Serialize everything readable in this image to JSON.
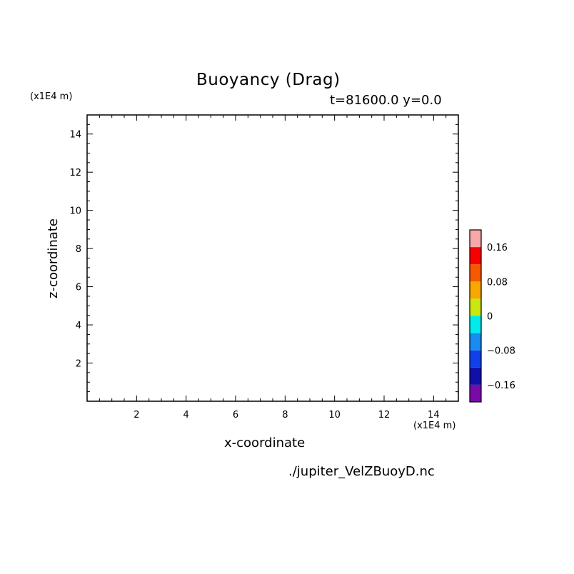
{
  "chart_data": {
    "type": "heatmap",
    "title": "Buoyancy (Drag)",
    "subtitle": "t=81600.0 y=0.0",
    "xlabel": "x-coordinate",
    "ylabel": "z-coordinate",
    "x_unit": "(x1E4 m)",
    "y_unit": "(x1E4 m)",
    "xlim": [
      0,
      15
    ],
    "ylim": [
      0,
      15
    ],
    "x_ticks": [
      2,
      4,
      6,
      8,
      10,
      12,
      14
    ],
    "y_ticks": [
      2,
      4,
      6,
      8,
      10,
      12,
      14
    ],
    "grid": false,
    "values": [],
    "colorbar": {
      "placement": "right",
      "levels": [
        "#7a0aa8",
        "#1010a8",
        "#1040e8",
        "#1a8cf0",
        "#00ecec",
        "#c8e810",
        "#f8a800",
        "#f85800",
        "#f80000",
        "#f8a8a8"
      ],
      "tick_values": [
        -0.16,
        -0.08,
        0,
        0.08,
        0.16
      ],
      "tick_labels": [
        "−0.16",
        "−0.08",
        "0",
        "0.08",
        "0.16"
      ]
    }
  },
  "filename": "./jupiter_VelZBuoyD.nc"
}
